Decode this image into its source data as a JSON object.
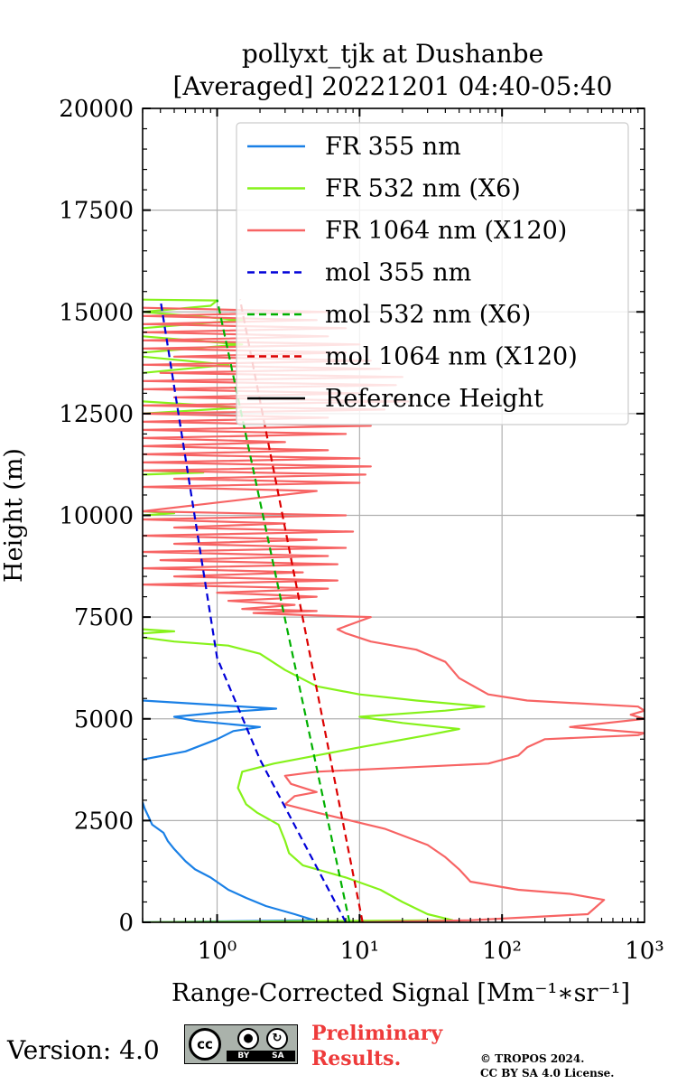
{
  "chart_data": {
    "type": "line",
    "title": "pollyxt_tjk at Dushanbe",
    "subtitle": "[Averaged] 20221201 04:40-05:40",
    "xlabel": "Range-Corrected Signal [Mm⁻¹∗sr⁻¹]",
    "ylabel": "Height (m)",
    "xscale": "log",
    "xlim": [
      0.3,
      1000
    ],
    "ylim": [
      0,
      20000
    ],
    "grid": true,
    "legend_position": "top-right",
    "x_ticks": [
      {
        "value": 1,
        "label": "10⁰"
      },
      {
        "value": 10,
        "label": "10¹"
      },
      {
        "value": 100,
        "label": "10²"
      },
      {
        "value": 1000,
        "label": "10³"
      }
    ],
    "y_ticks": [
      {
        "value": 0,
        "label": "0"
      },
      {
        "value": 2500,
        "label": "2500"
      },
      {
        "value": 5000,
        "label": "5000"
      },
      {
        "value": 7500,
        "label": "7500"
      },
      {
        "value": 10000,
        "label": "10000"
      },
      {
        "value": 12500,
        "label": "12500"
      },
      {
        "value": 15000,
        "label": "15000"
      },
      {
        "value": 17500,
        "label": "17500"
      },
      {
        "value": 20000,
        "label": "20000"
      }
    ],
    "series": [
      {
        "name": "FR 355 nm",
        "color": "#1a80e6",
        "dash": "solid",
        "width": 2.2,
        "points": [
          [
            0.3,
            0
          ],
          [
            4.8,
            50
          ],
          [
            3.5,
            200
          ],
          [
            2.2,
            400
          ],
          [
            1.6,
            600
          ],
          [
            1.2,
            800
          ],
          [
            0.9,
            1100
          ],
          [
            0.7,
            1300
          ],
          [
            0.6,
            1500
          ],
          [
            0.5,
            1800
          ],
          [
            0.45,
            2000
          ],
          [
            0.42,
            2200
          ],
          [
            0.35,
            2400
          ],
          [
            0.33,
            2600
          ],
          [
            0.31,
            2800
          ],
          [
            0.3,
            2950
          ],
          null,
          [
            0.3,
            4000
          ],
          [
            0.6,
            4200
          ],
          [
            1.0,
            4500
          ],
          [
            1.3,
            4700
          ],
          [
            2.0,
            4800
          ],
          [
            1.4,
            4850
          ],
          [
            0.7,
            4950
          ],
          [
            0.5,
            5050
          ],
          [
            1.0,
            5150
          ],
          [
            2.6,
            5250
          ],
          [
            0.3,
            5450
          ]
        ]
      },
      {
        "name": "FR 532 nm (X6)",
        "color": "#86f21a",
        "dash": "solid",
        "width": 2.2,
        "points": [
          [
            0.3,
            0
          ],
          [
            45,
            50
          ],
          [
            30,
            200
          ],
          [
            20,
            500
          ],
          [
            14,
            800
          ],
          [
            8,
            1100
          ],
          [
            4,
            1400
          ],
          [
            3.2,
            1700
          ],
          [
            3,
            2000
          ],
          [
            2.7,
            2400
          ],
          [
            1.9,
            2700
          ],
          [
            1.6,
            2900
          ],
          [
            1.4,
            3300
          ],
          [
            1.5,
            3700
          ],
          [
            2.5,
            3900
          ],
          [
            5,
            4100
          ],
          [
            10,
            4300
          ],
          [
            30,
            4600
          ],
          [
            50,
            4750
          ],
          [
            20,
            4900
          ],
          [
            10,
            5050
          ],
          [
            40,
            5200
          ],
          [
            75,
            5300
          ],
          [
            25,
            5450
          ],
          [
            10,
            5600
          ],
          [
            5,
            5800
          ],
          [
            3,
            6200
          ],
          [
            2,
            6600
          ],
          [
            1.2,
            6800
          ],
          [
            0.5,
            6900
          ],
          [
            0.3,
            7000
          ],
          null,
          [
            0.3,
            7100
          ],
          [
            0.5,
            7150
          ],
          [
            0.3,
            7200
          ],
          null,
          [
            0.3,
            10000
          ],
          [
            0.5,
            10050
          ],
          [
            0.3,
            10100
          ],
          null,
          [
            0.3,
            11000
          ],
          [
            0.8,
            11050
          ],
          [
            0.3,
            11100
          ],
          null,
          [
            0.3,
            12500
          ],
          [
            1.5,
            12650
          ],
          [
            0.3,
            12800
          ],
          null,
          [
            0.3,
            13500
          ],
          [
            1.2,
            13700
          ],
          [
            0.3,
            13900
          ],
          null,
          [
            0.3,
            14000
          ],
          [
            1.5,
            14200
          ],
          [
            0.3,
            14400
          ],
          null,
          [
            0.3,
            14600
          ],
          [
            1.5,
            14800
          ],
          [
            0.3,
            15000
          ],
          [
            0.9,
            15150
          ],
          [
            1.0,
            15280
          ],
          [
            0.3,
            15300
          ]
        ]
      },
      {
        "name": "FR 1064 nm (X120)",
        "color": "#f76464",
        "dash": "solid",
        "width": 2.2,
        "points": [
          [
            10,
            0
          ],
          [
            60,
            50
          ],
          [
            400,
            200
          ],
          [
            520,
            550
          ],
          [
            300,
            700
          ],
          [
            130,
            800
          ],
          [
            60,
            1000
          ],
          [
            50,
            1300
          ],
          [
            40,
            1600
          ],
          [
            30,
            1900
          ],
          [
            15,
            2300
          ],
          [
            5,
            2700
          ],
          [
            3,
            2900
          ],
          [
            3.5,
            3100
          ],
          [
            5,
            3200
          ],
          [
            3.3,
            3400
          ],
          [
            3,
            3600
          ],
          [
            5,
            3700
          ],
          [
            20,
            3800
          ],
          [
            80,
            3900
          ],
          [
            130,
            4100
          ],
          [
            150,
            4300
          ],
          [
            200,
            4500
          ],
          [
            900,
            4600
          ],
          [
            1000,
            4650
          ],
          [
            300,
            4800
          ],
          [
            1000,
            5000
          ],
          [
            800,
            5100
          ],
          [
            1000,
            5200
          ],
          [
            900,
            5300
          ],
          [
            150,
            5450
          ],
          [
            80,
            5600
          ],
          [
            50,
            6000
          ],
          [
            40,
            6400
          ],
          [
            25,
            6700
          ],
          [
            12,
            6900
          ],
          [
            8,
            7100
          ],
          [
            7,
            7200
          ],
          [
            10,
            7400
          ],
          [
            12,
            7500
          ],
          [
            4,
            7550
          ],
          [
            1.8,
            7600
          ],
          [
            5,
            7650
          ],
          [
            1.5,
            7700
          ],
          [
            3.5,
            7800
          ],
          [
            1.2,
            7900
          ],
          [
            5,
            8000
          ],
          [
            1.0,
            8100
          ],
          [
            6,
            8200
          ],
          [
            0.3,
            8300
          ],
          [
            7,
            8400
          ],
          [
            0.5,
            8500
          ],
          [
            4,
            8600
          ],
          [
            0.3,
            8700
          ],
          [
            7,
            8800
          ],
          [
            0.4,
            8900
          ],
          [
            6,
            9000
          ],
          [
            0.3,
            9100
          ],
          [
            8,
            9200
          ],
          [
            0.5,
            9300
          ],
          [
            5,
            9400
          ],
          [
            0.3,
            9500
          ],
          [
            9,
            9600
          ],
          [
            0.5,
            9700
          ],
          [
            3,
            9800
          ],
          [
            0.3,
            9900
          ],
          [
            8,
            10000
          ],
          [
            0.3,
            10100
          ],
          [
            5,
            10600
          ],
          [
            0.3,
            10700
          ],
          [
            10,
            10800
          ],
          [
            0.5,
            10900
          ],
          [
            11,
            11000
          ],
          [
            0.3,
            11100
          ],
          [
            12,
            11200
          ],
          [
            0.3,
            11300
          ],
          [
            10,
            11400
          ],
          [
            0.3,
            11500
          ],
          [
            6,
            11600
          ],
          [
            0.3,
            11700
          ],
          [
            3,
            11800
          ],
          [
            0.3,
            11900
          ],
          [
            8,
            12000
          ],
          [
            0.3,
            12100
          ],
          [
            12,
            12200
          ],
          [
            0.3,
            12300
          ],
          [
            6,
            12400
          ],
          [
            0.3,
            12500
          ],
          [
            15,
            12600
          ],
          [
            0.3,
            12700
          ],
          [
            22,
            12800
          ],
          [
            0.5,
            12900
          ],
          [
            10,
            13000
          ],
          [
            0.3,
            13100
          ],
          [
            18,
            13200
          ],
          [
            0.3,
            13300
          ],
          [
            20,
            13400
          ],
          [
            0.4,
            13500
          ],
          [
            14,
            13600
          ],
          [
            0.3,
            13700
          ],
          [
            12,
            13800
          ],
          [
            0.5,
            13900
          ],
          [
            8,
            14000
          ],
          [
            0.3,
            14100
          ],
          [
            10,
            14200
          ],
          [
            0.3,
            14300
          ],
          [
            6,
            14400
          ],
          [
            0.3,
            14500
          ],
          [
            8,
            14600
          ],
          [
            0.3,
            14700
          ],
          [
            5,
            14800
          ],
          [
            0.3,
            14900
          ],
          [
            6,
            15000
          ],
          [
            0.3,
            15100
          ]
        ]
      },
      {
        "name": "mol 355 nm",
        "color": "#0000d8",
        "dash": "dashed",
        "width": 2.2,
        "points": [
          [
            8,
            0
          ],
          [
            4,
            2000
          ],
          [
            2,
            4000
          ],
          [
            1,
            6500
          ],
          [
            0.4,
            15300
          ]
        ]
      },
      {
        "name": "mol 532 nm (X6)",
        "color": "#00b000",
        "dash": "dashed",
        "width": 2.2,
        "points": [
          [
            8.5,
            0
          ],
          [
            1.0,
            15300
          ]
        ]
      },
      {
        "name": "mol 1064 nm (X120)",
        "color": "#dc0000",
        "dash": "dashed",
        "width": 2.2,
        "points": [
          [
            10.5,
            0
          ],
          [
            1.45,
            15300
          ]
        ]
      },
      {
        "name": "Reference Height",
        "color": "#000000",
        "dash": "solid",
        "width": 2.2,
        "points": []
      }
    ]
  },
  "footer": {
    "version": "Version: 4.0",
    "cc_icon": "cc-by-sa-badge",
    "cc_by_label": "BY",
    "cc_sa_label": "SA",
    "preliminary_line1": "Preliminary",
    "preliminary_line2": "Results.",
    "copyright_line1": "© TROPOS 2024.",
    "copyright_line2": "CC BY SA 4.0 License."
  }
}
